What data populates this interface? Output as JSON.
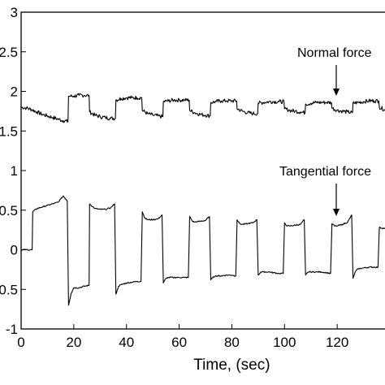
{
  "chart_data": {
    "type": "line",
    "title": "",
    "xlabel": "Time, (sec)",
    "ylabel": "",
    "xlim": [
      0,
      140
    ],
    "ylim": [
      -1,
      3
    ],
    "grid": false,
    "x_ticks": [
      0,
      20,
      40,
      60,
      80,
      100,
      120
    ],
    "x_tick_labels": [
      "0",
      "20",
      "40",
      "60",
      "80",
      "100",
      "120"
    ],
    "y_ticks": [
      -1,
      -0.5,
      0,
      0.5,
      1,
      1.5,
      2,
      2.5,
      3
    ],
    "y_tick_labels": [
      "-1",
      "-0.5",
      "0",
      "0.5",
      "1",
      "1.5",
      "2",
      "2.5",
      "3"
    ],
    "series": [
      {
        "points": [
          [
            0,
            1.8
          ],
          [
            2,
            1.79
          ],
          [
            4,
            1.77
          ],
          [
            6,
            1.74
          ],
          [
            8,
            1.71
          ],
          [
            10,
            1.69
          ],
          [
            12,
            1.67
          ],
          [
            14,
            1.65
          ],
          [
            16,
            1.63
          ],
          [
            17.8,
            1.62
          ],
          [
            18,
            1.94
          ],
          [
            20,
            1.94
          ],
          [
            22,
            1.95
          ],
          [
            24,
            1.95
          ],
          [
            25.8,
            1.95
          ],
          [
            26,
            1.74
          ],
          [
            28,
            1.7
          ],
          [
            30,
            1.68
          ],
          [
            32,
            1.67
          ],
          [
            34,
            1.66
          ],
          [
            35.8,
            1.66
          ],
          [
            36,
            1.89
          ],
          [
            38,
            1.91
          ],
          [
            40,
            1.92
          ],
          [
            42,
            1.92
          ],
          [
            44,
            1.92
          ],
          [
            45.8,
            1.92
          ],
          [
            46,
            1.76
          ],
          [
            48,
            1.72
          ],
          [
            50,
            1.7
          ],
          [
            52,
            1.69
          ],
          [
            53.8,
            1.68
          ],
          [
            54,
            1.87
          ],
          [
            56,
            1.88
          ],
          [
            58,
            1.89
          ],
          [
            60,
            1.89
          ],
          [
            62,
            1.89
          ],
          [
            63.8,
            1.89
          ],
          [
            64,
            1.76
          ],
          [
            66,
            1.73
          ],
          [
            68,
            1.71
          ],
          [
            70,
            1.7
          ],
          [
            71.8,
            1.69
          ],
          [
            72,
            1.86
          ],
          [
            74,
            1.87
          ],
          [
            76,
            1.88
          ],
          [
            78,
            1.88
          ],
          [
            80,
            1.88
          ],
          [
            81.8,
            1.88
          ],
          [
            82,
            1.78
          ],
          [
            84,
            1.75
          ],
          [
            86,
            1.73
          ],
          [
            88,
            1.72
          ],
          [
            89.8,
            1.72
          ],
          [
            90,
            1.85
          ],
          [
            92,
            1.86
          ],
          [
            94,
            1.87
          ],
          [
            96,
            1.87
          ],
          [
            98,
            1.87
          ],
          [
            99.8,
            1.87
          ],
          [
            100,
            1.78
          ],
          [
            102,
            1.76
          ],
          [
            104,
            1.75
          ],
          [
            106,
            1.74
          ],
          [
            107.8,
            1.73
          ],
          [
            108,
            1.84
          ],
          [
            110,
            1.85
          ],
          [
            112,
            1.86
          ],
          [
            114,
            1.86
          ],
          [
            116,
            1.86
          ],
          [
            117.8,
            1.86
          ],
          [
            118,
            1.79
          ],
          [
            120,
            1.76
          ],
          [
            122,
            1.75
          ],
          [
            124,
            1.74
          ],
          [
            125.8,
            1.73
          ],
          [
            126,
            1.85
          ],
          [
            128,
            1.86
          ],
          [
            130,
            1.87
          ],
          [
            132,
            1.88
          ],
          [
            134,
            1.88
          ],
          [
            135.8,
            1.88
          ],
          [
            136,
            1.8
          ],
          [
            138,
            1.77
          ],
          [
            140,
            1.75
          ]
        ]
      },
      {
        "points": [
          [
            0,
            0.0
          ],
          [
            2,
            0.0
          ],
          [
            4,
            0.0
          ],
          [
            4.2,
            0.0
          ],
          [
            4.4,
            0.48
          ],
          [
            6,
            0.52
          ],
          [
            8,
            0.54
          ],
          [
            10,
            0.56
          ],
          [
            12,
            0.58
          ],
          [
            14,
            0.6
          ],
          [
            15,
            0.64
          ],
          [
            16,
            0.68
          ],
          [
            17.5,
            0.62
          ],
          [
            18,
            -0.7
          ],
          [
            19,
            -0.55
          ],
          [
            20,
            -0.48
          ],
          [
            22,
            -0.48
          ],
          [
            24,
            -0.46
          ],
          [
            25.8,
            -0.45
          ],
          [
            26,
            0.58
          ],
          [
            28,
            0.52
          ],
          [
            30,
            0.51
          ],
          [
            32,
            0.51
          ],
          [
            34,
            0.53
          ],
          [
            35.5,
            0.58
          ],
          [
            36,
            -0.56
          ],
          [
            37,
            -0.46
          ],
          [
            38,
            -0.44
          ],
          [
            40,
            -0.42
          ],
          [
            42,
            -0.41
          ],
          [
            44,
            -0.4
          ],
          [
            45.5,
            -0.4
          ],
          [
            46,
            0.48
          ],
          [
            47,
            0.4
          ],
          [
            48,
            0.38
          ],
          [
            50,
            0.38
          ],
          [
            52,
            0.39
          ],
          [
            53.5,
            0.44
          ],
          [
            54,
            -0.42
          ],
          [
            55,
            -0.36
          ],
          [
            56,
            -0.35
          ],
          [
            58,
            -0.35
          ],
          [
            60,
            -0.35
          ],
          [
            62,
            -0.35
          ],
          [
            63.5,
            -0.35
          ],
          [
            64,
            0.42
          ],
          [
            65,
            0.36
          ],
          [
            66,
            0.35
          ],
          [
            68,
            0.36
          ],
          [
            70,
            0.37
          ],
          [
            71.5,
            0.42
          ],
          [
            72,
            -0.38
          ],
          [
            73,
            -0.34
          ],
          [
            74,
            -0.33
          ],
          [
            76,
            -0.33
          ],
          [
            78,
            -0.32
          ],
          [
            80,
            -0.32
          ],
          [
            81.5,
            -0.33
          ],
          [
            82,
            0.38
          ],
          [
            83,
            0.33
          ],
          [
            84,
            0.32
          ],
          [
            86,
            0.33
          ],
          [
            88,
            0.34
          ],
          [
            89.5,
            0.38
          ],
          [
            90,
            -0.32
          ],
          [
            91,
            -0.28
          ],
          [
            92,
            -0.28
          ],
          [
            94,
            -0.28
          ],
          [
            96,
            -0.29
          ],
          [
            98,
            -0.3
          ],
          [
            99.5,
            -0.3
          ],
          [
            100,
            0.34
          ],
          [
            101,
            0.3
          ],
          [
            102,
            0.3
          ],
          [
            104,
            0.31
          ],
          [
            106,
            0.32
          ],
          [
            107.5,
            0.38
          ],
          [
            108,
            -0.32
          ],
          [
            109,
            -0.28
          ],
          [
            110,
            -0.28
          ],
          [
            112,
            -0.28
          ],
          [
            114,
            -0.28
          ],
          [
            116,
            -0.29
          ],
          [
            117.5,
            -0.3
          ],
          [
            118,
            0.33
          ],
          [
            119,
            0.3
          ],
          [
            120,
            0.3
          ],
          [
            122,
            0.32
          ],
          [
            124,
            0.35
          ],
          [
            125.5,
            0.44
          ],
          [
            126,
            -0.36
          ],
          [
            127,
            -0.27
          ],
          [
            128,
            -0.24
          ],
          [
            130,
            -0.23
          ],
          [
            132,
            -0.22
          ],
          [
            134,
            -0.22
          ],
          [
            135.5,
            -0.22
          ],
          [
            136,
            0.28
          ],
          [
            138,
            0.27
          ],
          [
            140,
            0.27
          ]
        ]
      }
    ],
    "annotations": [
      {
        "text": "Normal force",
        "arrow_to": [
          118,
          1.75
        ]
      },
      {
        "text": "Tangential force",
        "arrow_to": [
          118,
          0.33
        ]
      }
    ]
  }
}
